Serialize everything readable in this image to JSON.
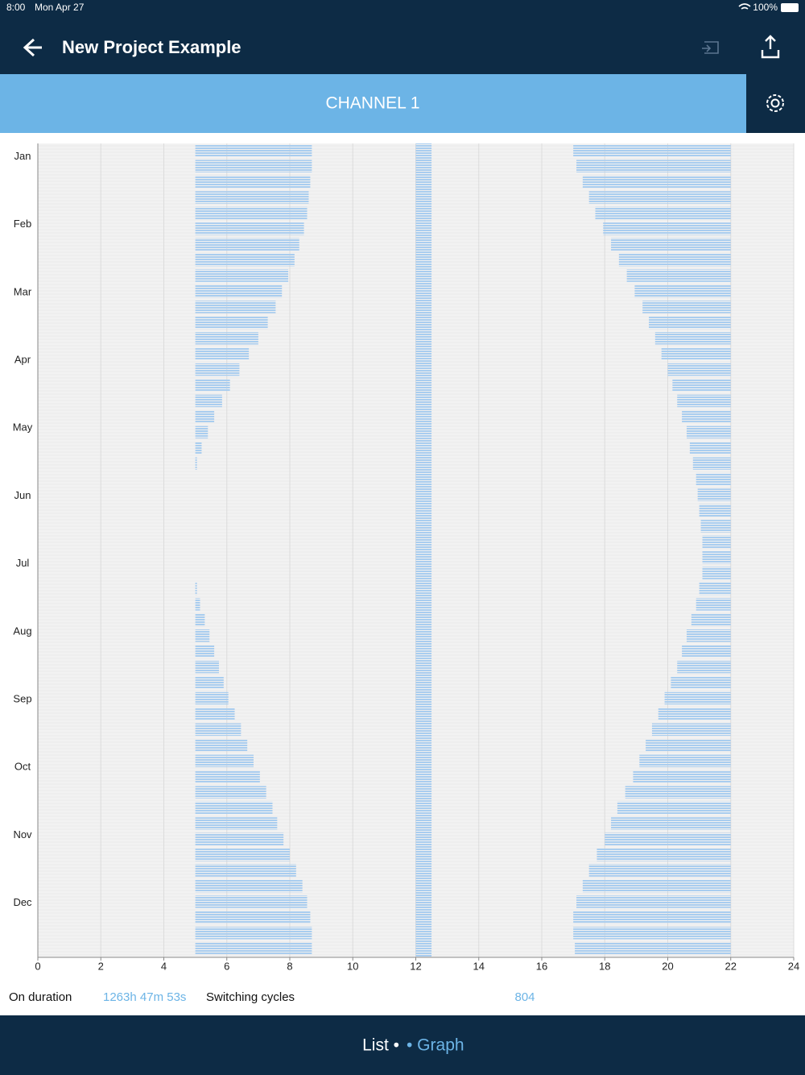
{
  "status_bar": {
    "time": "8:00",
    "date": "Mon Apr 27",
    "battery": "100%"
  },
  "header": {
    "title": "New Project Example"
  },
  "channel": {
    "title": "CHANNEL 1"
  },
  "chart_data": {
    "type": "range-bar",
    "months": [
      "Jan",
      "Feb",
      "Mar",
      "Apr",
      "May",
      "Jun",
      "Jul",
      "Aug",
      "Sep",
      "Oct",
      "Nov",
      "Dec"
    ],
    "color": "#a9cdef",
    "xlim": [
      0,
      24
    ],
    "xticks": [
      0,
      2,
      4,
      6,
      8,
      10,
      12,
      14,
      16,
      18,
      20,
      22,
      24
    ],
    "grid": true,
    "morning": {
      "from": 5,
      "to": [
        8.7,
        8.7,
        8.65,
        8.6,
        8.55,
        8.45,
        8.3,
        8.15,
        7.95,
        7.75,
        7.55,
        7.3,
        7.0,
        6.7,
        6.4,
        6.1,
        5.85,
        5.6,
        5.4,
        5.2,
        5.05,
        null,
        null,
        null,
        null,
        null,
        null,
        null,
        5.05,
        5.15,
        5.3,
        5.45,
        5.6,
        5.75,
        5.9,
        6.05,
        6.25,
        6.45,
        6.65,
        6.85,
        7.05,
        7.25,
        7.45,
        7.6,
        7.8,
        8.0,
        8.2,
        8.4,
        8.55,
        8.65,
        8.7,
        8.7
      ]
    },
    "noon": {
      "from": 12,
      "to": 12.5
    },
    "evening": {
      "from": [
        17.0,
        17.1,
        17.3,
        17.5,
        17.7,
        17.95,
        18.2,
        18.45,
        18.7,
        18.95,
        19.2,
        19.4,
        19.6,
        19.8,
        20.0,
        20.15,
        20.3,
        20.45,
        20.6,
        20.7,
        20.8,
        20.9,
        20.95,
        21.0,
        21.05,
        21.1,
        21.1,
        21.1,
        21.0,
        20.9,
        20.75,
        20.6,
        20.45,
        20.3,
        20.1,
        19.9,
        19.7,
        19.5,
        19.3,
        19.1,
        18.9,
        18.65,
        18.4,
        18.2,
        18.0,
        17.75,
        17.5,
        17.3,
        17.1,
        17.0,
        17.0,
        17.05
      ],
      "to": 22
    }
  },
  "stats": {
    "on_label": "On duration",
    "on_value": "1263h 47m 53s",
    "cycles_label": "Switching cycles",
    "cycles_value": 804
  },
  "footer": {
    "list": "List •",
    "graph": "• Graph"
  }
}
